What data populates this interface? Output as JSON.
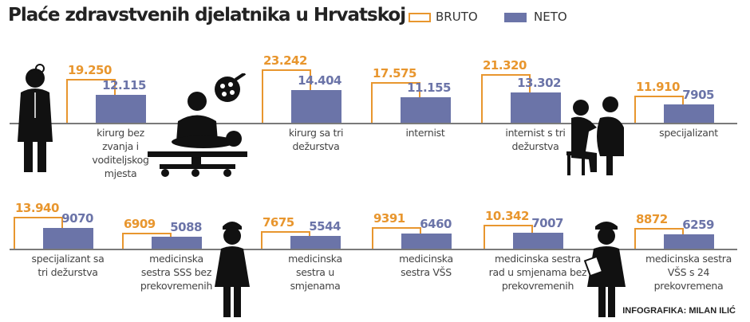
{
  "title": "Plaće zdravstvenih djelatnika u Hrvatskoj",
  "legend": [
    {
      "label": "BRUTO",
      "style": "outline",
      "color": "#e8962e"
    },
    {
      "label": "NETO",
      "style": "filled",
      "color": "#6b74a8"
    }
  ],
  "credit": "INFOGRAFIKA: MILAN ILIĆ",
  "icons": [
    "doctor-icon",
    "surgeon-operating-icon",
    "doctor-examining-patient-icon",
    "nurse-icon",
    "nurse-with-clipboard-icon"
  ],
  "chart_data": {
    "type": "bar",
    "title": "Plaće zdravstvenih djelatnika u Hrvatskoj",
    "colors": {
      "BRUTO": "#e8962e",
      "NETO": "#6b74a8"
    },
    "legend_position": "top",
    "grid": false,
    "categories": [
      {
        "label": "kirurg bez\nzvanja i\nvoditeljskog\nmjesta",
        "bruto": 19250,
        "bruto_label": "19.250",
        "neto": 12115,
        "neto_label": "12.115"
      },
      {
        "label": "kirurg sa tri\ndežurstva",
        "bruto": 23242,
        "bruto_label": "23.242",
        "neto": 14404,
        "neto_label": "14.404"
      },
      {
        "label": "internist",
        "bruto": 17575,
        "bruto_label": "17.575",
        "neto": 11155,
        "neto_label": "11.155"
      },
      {
        "label": "internist s tri\ndežurstva",
        "bruto": 21320,
        "bruto_label": "21.320",
        "neto": 13302,
        "neto_label": "13.302"
      },
      {
        "label": "specijalizant",
        "bruto": 11910,
        "bruto_label": "11.910",
        "neto": 7905,
        "neto_label": "7905"
      },
      {
        "label": "specijalizant sa\ntri dežurstva",
        "bruto": 13940,
        "bruto_label": "13.940",
        "neto": 9070,
        "neto_label": "9070"
      },
      {
        "label": "medicinska\nsestra SSS bez\nprekovremenih",
        "bruto": 6909,
        "bruto_label": "6909",
        "neto": 5088,
        "neto_label": "5088"
      },
      {
        "label": "medicinska\nsestra u\nsmjenama",
        "bruto": 7675,
        "bruto_label": "7675",
        "neto": 5544,
        "neto_label": "5544"
      },
      {
        "label": "medicinska\nsestra VŠS",
        "bruto": 9391,
        "bruto_label": "9391",
        "neto": 6460,
        "neto_label": "6460"
      },
      {
        "label": "medicinska sestra\nrad u smjenama bez\nprekovremenih",
        "bruto": 10342,
        "bruto_label": "10.342",
        "neto": 7007,
        "neto_label": "7007"
      },
      {
        "label": "medicinska sestra\nVŠS s 24\nprekovremena",
        "bruto": 8872,
        "bruto_label": "8872",
        "neto": 6259,
        "neto_label": "6259"
      }
    ]
  }
}
